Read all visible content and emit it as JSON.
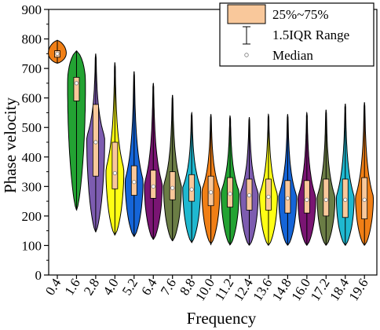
{
  "chart_data": {
    "type": "violin",
    "xlabel": "Frequency",
    "ylabel": "Phase velocity",
    "ylim": [
      0,
      900
    ],
    "yticks": [
      0,
      100,
      200,
      300,
      400,
      500,
      600,
      700,
      800,
      900
    ],
    "categories": [
      "0.4",
      "1.6",
      "2.8",
      "4.0",
      "5.2",
      "6.4",
      "7.6",
      "8.8",
      "10.0",
      "11.2",
      "12.4",
      "13.6",
      "14.8",
      "16.0",
      "17.2",
      "18.4",
      "19.6"
    ],
    "grid": false,
    "legend_position": "top-right",
    "legend": [
      {
        "key": "box",
        "label": "25%~75%"
      },
      {
        "key": "whisker",
        "label": "1.5IQR Range"
      },
      {
        "key": "median",
        "label": "Median"
      }
    ],
    "box_color": "#f9c89b",
    "colors": [
      "#f07f16",
      "#23a333",
      "#7d5cb0",
      "#ffff14",
      "#1565d8",
      "#7a1573",
      "#6b7d45",
      "#1fb8d0",
      "#f07f16",
      "#23a333",
      "#7d5cb0",
      "#ffff14",
      "#1565d8",
      "#7a1573",
      "#6b7d45",
      "#1fb8d0",
      "#f07f16"
    ],
    "series": [
      {
        "min": 718,
        "q1": 738,
        "median": 750,
        "q3": 760,
        "max": 795
      },
      {
        "min": 220,
        "q1": 590,
        "median": 650,
        "q3": 670,
        "max": 760
      },
      {
        "min": 145,
        "q1": 335,
        "median": 450,
        "q3": 578,
        "max": 750
      },
      {
        "min": 135,
        "q1": 292,
        "median": 345,
        "q3": 450,
        "max": 720
      },
      {
        "min": 130,
        "q1": 270,
        "median": 315,
        "q3": 370,
        "max": 690
      },
      {
        "min": 120,
        "q1": 260,
        "median": 300,
        "q3": 355,
        "max": 650
      },
      {
        "min": 115,
        "q1": 255,
        "median": 295,
        "q3": 350,
        "max": 610
      },
      {
        "min": 110,
        "q1": 250,
        "median": 290,
        "q3": 340,
        "max": 550
      },
      {
        "min": 105,
        "q1": 235,
        "median": 280,
        "q3": 335,
        "max": 545
      },
      {
        "min": 102,
        "q1": 230,
        "median": 275,
        "q3": 330,
        "max": 540
      },
      {
        "min": 100,
        "q1": 220,
        "median": 270,
        "q3": 325,
        "max": 535
      },
      {
        "min": 100,
        "q1": 220,
        "median": 265,
        "q3": 325,
        "max": 545
      },
      {
        "min": 100,
        "q1": 210,
        "median": 260,
        "q3": 320,
        "max": 545
      },
      {
        "min": 100,
        "q1": 210,
        "median": 255,
        "q3": 320,
        "max": 550
      },
      {
        "min": 100,
        "q1": 200,
        "median": 255,
        "q3": 325,
        "max": 560
      },
      {
        "min": 100,
        "q1": 195,
        "median": 255,
        "q3": 325,
        "max": 580
      },
      {
        "min": 100,
        "q1": 190,
        "median": 255,
        "q3": 330,
        "max": 585
      }
    ]
  }
}
